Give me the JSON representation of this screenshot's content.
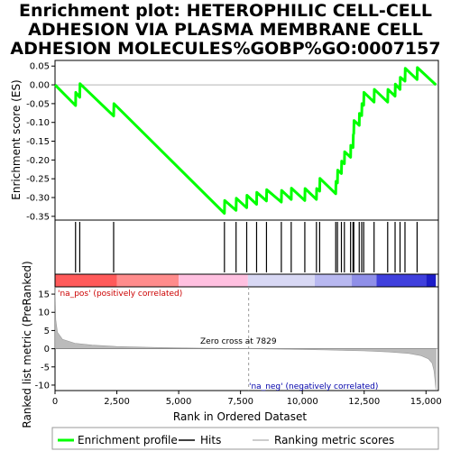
{
  "chart_data": {
    "type": "line",
    "title_lines": [
      "Enrichment plot: HETEROPHILIC CELL-CELL",
      "ADHESION VIA PLASMA MEMBRANE CELL",
      "ADHESION MOLECULES%GOBP%GO:0007157"
    ],
    "xlabel": "Rank in Ordered Dataset",
    "xlim": [
      0,
      15500
    ],
    "x_ticks": [
      0,
      2500,
      5000,
      7500,
      10000,
      12500,
      15000
    ],
    "x_tick_labels": [
      "0",
      "2,500",
      "5,000",
      "7,500",
      "10,000",
      "12,500",
      "15,000"
    ],
    "es_panel": {
      "ylabel": "Enrichment score (ES)",
      "ylim": [
        -0.36,
        0.065
      ],
      "y_ticks": [
        0.05,
        0.0,
        -0.05,
        -0.1,
        -0.15,
        -0.2,
        -0.25,
        -0.3,
        -0.35
      ],
      "y_tick_labels": [
        "0.05",
        "0.00",
        "-0.05",
        "-0.10",
        "-0.15",
        "-0.20",
        "-0.25",
        "-0.30",
        "-0.35"
      ],
      "series_color": "#00ff00",
      "points": [
        [
          0,
          0.0
        ],
        [
          830,
          -0.055
        ],
        [
          840,
          -0.02
        ],
        [
          1000,
          -0.033
        ],
        [
          1010,
          0.003
        ],
        [
          2370,
          -0.083
        ],
        [
          2380,
          -0.05
        ],
        [
          6850,
          -0.342
        ],
        [
          6860,
          -0.308
        ],
        [
          7320,
          -0.334
        ],
        [
          7330,
          -0.302
        ],
        [
          7750,
          -0.327
        ],
        [
          7760,
          -0.294
        ],
        [
          8150,
          -0.318
        ],
        [
          8160,
          -0.286
        ],
        [
          8550,
          -0.309
        ],
        [
          8560,
          -0.279
        ],
        [
          9150,
          -0.312
        ],
        [
          9160,
          -0.281
        ],
        [
          9550,
          -0.305
        ],
        [
          9560,
          -0.275
        ],
        [
          10100,
          -0.308
        ],
        [
          10110,
          -0.276
        ],
        [
          10570,
          -0.305
        ],
        [
          10580,
          -0.276
        ],
        [
          10700,
          -0.283
        ],
        [
          10710,
          -0.249
        ],
        [
          11350,
          -0.29
        ],
        [
          11360,
          -0.257
        ],
        [
          11420,
          -0.261
        ],
        [
          11430,
          -0.227
        ],
        [
          11580,
          -0.236
        ],
        [
          11590,
          -0.203
        ],
        [
          11700,
          -0.21
        ],
        [
          11710,
          -0.178
        ],
        [
          11950,
          -0.193
        ],
        [
          11960,
          -0.161
        ],
        [
          12050,
          -0.167
        ],
        [
          12060,
          -0.133
        ],
        [
          12080,
          -0.129
        ],
        [
          12090,
          -0.095
        ],
        [
          12300,
          -0.108
        ],
        [
          12310,
          -0.076
        ],
        [
          12400,
          -0.082
        ],
        [
          12410,
          -0.05
        ],
        [
          12480,
          -0.054
        ],
        [
          12490,
          -0.02
        ],
        [
          12900,
          -0.046
        ],
        [
          12910,
          -0.012
        ],
        [
          13450,
          -0.046
        ],
        [
          13460,
          -0.012
        ],
        [
          13750,
          -0.03
        ],
        [
          13760,
          0.002
        ],
        [
          13950,
          -0.012
        ],
        [
          13960,
          0.02
        ],
        [
          14150,
          0.01
        ],
        [
          14160,
          0.044
        ],
        [
          14640,
          0.014
        ],
        [
          14650,
          0.046
        ],
        [
          15400,
          0.0
        ]
      ]
    },
    "hits": [
      830,
      1000,
      2370,
      6850,
      7320,
      7750,
      8150,
      8550,
      9150,
      9550,
      10100,
      10570,
      10700,
      11350,
      11420,
      11580,
      11700,
      11950,
      12050,
      12080,
      12300,
      12400,
      12480,
      12900,
      13450,
      13750,
      13950,
      14150,
      14640
    ],
    "color_bar": {
      "segments": [
        {
          "from": 0,
          "to": 2500,
          "color": "#ff5a5a"
        },
        {
          "from": 2500,
          "to": 5000,
          "color": "#ff8c8c"
        },
        {
          "from": 5000,
          "to": 7800,
          "color": "#ffc0e0"
        },
        {
          "from": 7800,
          "to": 10500,
          "color": "#d8d8f4"
        },
        {
          "from": 10500,
          "to": 12000,
          "color": "#b8b8f0"
        },
        {
          "from": 12000,
          "to": 13000,
          "color": "#8f8fe8"
        },
        {
          "from": 13000,
          "to": 15000,
          "color": "#4040dd"
        },
        {
          "from": 15000,
          "to": 15400,
          "color": "#1c1cc8"
        }
      ]
    },
    "metric_panel": {
      "ylabel": "Ranked list metric (PreRanked)",
      "ylim": [
        -11.5,
        17
      ],
      "y_ticks": [
        15,
        10,
        5,
        0,
        -5,
        -10
      ],
      "y_tick_labels": [
        "15",
        "10",
        "5",
        "0",
        "-5",
        "-10"
      ],
      "fill_color": "#bbbbbb",
      "curve": [
        [
          0,
          17
        ],
        [
          30,
          8
        ],
        [
          100,
          4.5
        ],
        [
          300,
          2.6
        ],
        [
          800,
          1.5
        ],
        [
          1500,
          1.0
        ],
        [
          2500,
          0.6
        ],
        [
          4000,
          0.35
        ],
        [
          6000,
          0.15
        ],
        [
          7829,
          0.0
        ],
        [
          9500,
          -0.15
        ],
        [
          11000,
          -0.35
        ],
        [
          12500,
          -0.6
        ],
        [
          13500,
          -0.9
        ],
        [
          14300,
          -1.3
        ],
        [
          14800,
          -1.9
        ],
        [
          15100,
          -2.8
        ],
        [
          15250,
          -4.0
        ],
        [
          15320,
          -6.0
        ],
        [
          15370,
          -9.0
        ],
        [
          15400,
          -11.2
        ]
      ],
      "zero_cross_x": 7829,
      "zero_cross_label": "Zero cross at 7829",
      "pos_label": "'na_pos' (positively correlated)",
      "neg_label": "'na_neg' (negatively correlated)",
      "pos_label_color": "#cc0000",
      "neg_label_color": "#0000aa"
    },
    "legend": {
      "placement": "bottom",
      "entries": [
        {
          "label": "Enrichment profile",
          "color": "#00ff00"
        },
        {
          "label": "Hits",
          "color": "#000000"
        },
        {
          "label": "Ranking metric scores",
          "color": "#bbbbbb"
        }
      ]
    }
  }
}
